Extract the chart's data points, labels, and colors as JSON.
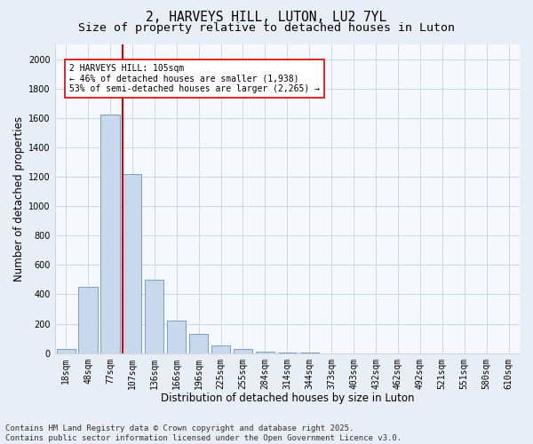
{
  "title_line1": "2, HARVEYS HILL, LUTON, LU2 7YL",
  "title_line2": "Size of property relative to detached houses in Luton",
  "xlabel": "Distribution of detached houses by size in Luton",
  "ylabel": "Number of detached properties",
  "categories": [
    "18sqm",
    "48sqm",
    "77sqm",
    "107sqm",
    "136sqm",
    "166sqm",
    "196sqm",
    "225sqm",
    "255sqm",
    "284sqm",
    "314sqm",
    "344sqm",
    "373sqm",
    "403sqm",
    "432sqm",
    "462sqm",
    "492sqm",
    "521sqm",
    "551sqm",
    "580sqm",
    "610sqm"
  ],
  "values": [
    30,
    450,
    1620,
    1220,
    500,
    220,
    130,
    55,
    30,
    10,
    5,
    2,
    1,
    0,
    0,
    0,
    0,
    0,
    0,
    0,
    0
  ],
  "bar_color": "#c8d8ed",
  "bar_edgecolor": "#7aA0c0",
  "vline_color": "#dd0000",
  "annotation_text": "2 HARVEYS HILL: 105sqm\n← 46% of detached houses are smaller (1,938)\n53% of semi-detached houses are larger (2,265) →",
  "annotation_box_edgecolor": "#dd0000",
  "annotation_box_facecolor": "#ffffff",
  "ylim": [
    0,
    2100
  ],
  "yticks": [
    0,
    200,
    400,
    600,
    800,
    1000,
    1200,
    1400,
    1600,
    1800,
    2000
  ],
  "footer_line1": "Contains HM Land Registry data © Crown copyright and database right 2025.",
  "footer_line2": "Contains public sector information licensed under the Open Government Licence v3.0.",
  "background_color": "#e8eef5",
  "plot_background_color": "#f5f8fc",
  "grid_color": "#c8d0d8",
  "title_fontsize": 10.5,
  "subtitle_fontsize": 9.5,
  "axis_fontsize": 8.5,
  "tick_fontsize": 7,
  "footer_fontsize": 6.5
}
